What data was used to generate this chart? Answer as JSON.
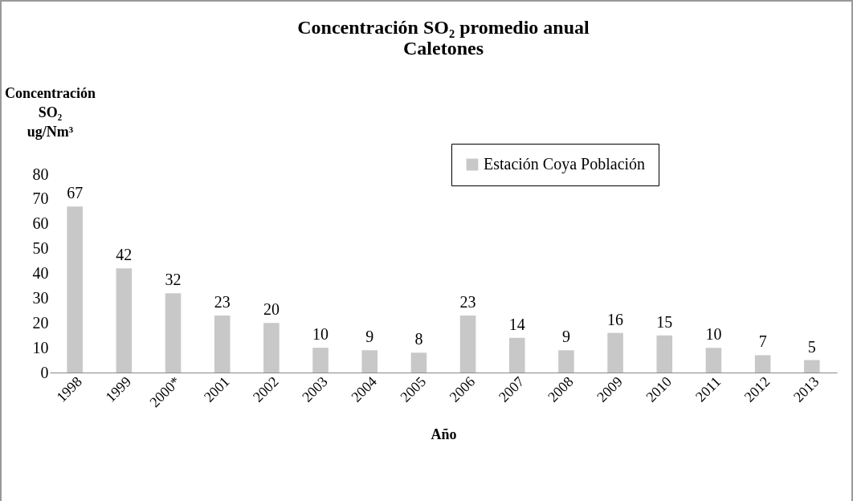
{
  "chart_data": {
    "type": "bar",
    "title": "Concentración SO₂  promedio anual\nCaletones",
    "ylabel": "Concentración SO₂ ug/Nm³",
    "xlabel": "Año",
    "categories": [
      "1998",
      "1999",
      "2000*",
      "2001",
      "2002",
      "2003",
      "2004",
      "2005",
      "2006",
      "2007",
      "2008",
      "2009",
      "2010",
      "2011",
      "2012",
      "2013"
    ],
    "series": [
      {
        "name": "Estación Coya Población",
        "color": "#c8c8c8",
        "values": [
          67,
          42,
          32,
          23,
          20,
          10,
          9,
          8,
          23,
          14,
          9,
          16,
          15,
          10,
          7,
          5
        ]
      }
    ],
    "ylim": [
      0,
      80
    ],
    "yticks": [
      0,
      10,
      20,
      30,
      40,
      50,
      60,
      70,
      80
    ],
    "data_labels": true,
    "grid": false,
    "legend": "top right"
  }
}
